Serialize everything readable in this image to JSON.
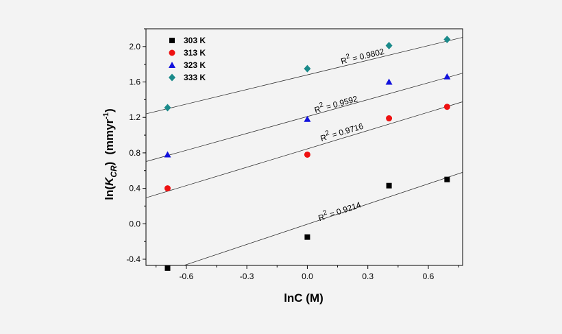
{
  "chart_data": {
    "type": "scatter",
    "xlabel": "lnC (M)",
    "ylabel_parts": {
      "prefix": "ln(",
      "italic": "K",
      "subscript": "CR",
      "suffix": ")",
      "units": "(mmyr",
      "units_sup": "-1",
      "units_end": ")"
    },
    "xlim": [
      -0.8,
      0.77
    ],
    "ylim": [
      -0.47,
      2.2
    ],
    "x_ticks": [
      -0.6,
      -0.3,
      0.0,
      0.3,
      0.6
    ],
    "x_tick_labels": [
      "-0.6",
      "-0.3",
      "0.0",
      "0.3",
      "0.6"
    ],
    "y_ticks": [
      -0.4,
      0.0,
      0.4,
      0.8,
      1.2,
      1.6,
      2.0
    ],
    "y_tick_labels": [
      "-0.4",
      "0.0",
      "0.4",
      "0.8",
      "1.2",
      "1.6",
      "2.0"
    ],
    "legend_position": "top-left",
    "series": [
      {
        "name": "303 K",
        "marker": "square",
        "color": "#000000",
        "x": [
          -0.693,
          0.0,
          0.405,
          0.693
        ],
        "y": [
          -0.5,
          -0.15,
          0.43,
          0.5
        ],
        "fit": {
          "slope": 0.76,
          "intercept": -0.005
        },
        "r2_label": "R",
        "r2_sup": "2",
        "r2_value": " = 0.9214",
        "r2_at": [
          0.06,
          0.03
        ]
      },
      {
        "name": "313 K",
        "marker": "circle",
        "color": "#ee1111",
        "x": [
          -0.693,
          0.0,
          0.405,
          0.693
        ],
        "y": [
          0.4,
          0.78,
          1.19,
          1.32
        ],
        "fit": {
          "slope": 0.69,
          "intercept": 0.845
        },
        "r2_label": "R",
        "r2_sup": "2",
        "r2_value": " = 0.9716",
        "r2_at": [
          0.07,
          0.93
        ]
      },
      {
        "name": "323 K",
        "marker": "triangle",
        "color": "#1111dd",
        "x": [
          -0.693,
          0.0,
          0.405,
          0.693
        ],
        "y": [
          0.78,
          1.18,
          1.6,
          1.66
        ],
        "fit": {
          "slope": 0.635,
          "intercept": 1.21
        },
        "r2_label": "R",
        "r2_sup": "2",
        "r2_value": " = 0.9592",
        "r2_at": [
          0.04,
          1.25
        ]
      },
      {
        "name": "333 K",
        "marker": "diamond",
        "color": "#1a8a8a",
        "x": [
          -0.693,
          0.0,
          0.405,
          0.693
        ],
        "y": [
          1.31,
          1.75,
          2.01,
          2.08
        ],
        "fit": {
          "slope": 0.55,
          "intercept": 1.68
        },
        "r2_label": "R",
        "r2_sup": "2",
        "r2_value": " = 0.9802",
        "r2_at": [
          0.17,
          1.8
        ]
      }
    ]
  }
}
